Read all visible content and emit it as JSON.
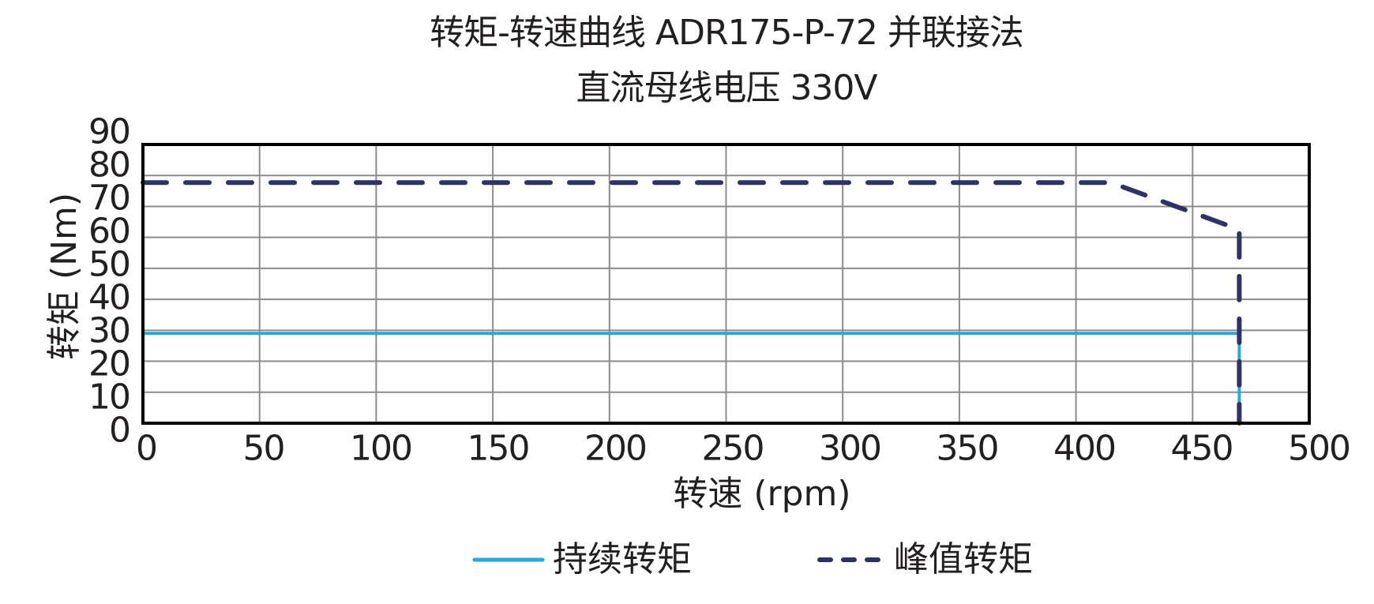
{
  "title": {
    "line1": "转矩-转速曲线 ADR175-P-72 并联接法",
    "line2": "直流母线电压 330V"
  },
  "axes": {
    "xlabel": "转速 (rpm)",
    "ylabel": "转矩 (Nm)"
  },
  "legend": {
    "continuous": "持续转矩",
    "peak": "峰值转矩"
  },
  "colors": {
    "continuous": "#29a8dc",
    "peak": "#2e3366",
    "grid": "#8c8c8c",
    "frame": "#000000"
  },
  "chart_data": {
    "type": "line",
    "title": "转矩-转速曲线 ADR175-P-72 并联接法 / 直流母线电压 330V",
    "xlabel": "转速 (rpm)",
    "ylabel": "转矩 (Nm)",
    "xlim": [
      0,
      500
    ],
    "ylim": [
      0,
      90
    ],
    "xticks": [
      0,
      50,
      100,
      150,
      200,
      250,
      300,
      350,
      400,
      450,
      500
    ],
    "yticks": [
      0,
      10,
      20,
      30,
      40,
      50,
      60,
      70,
      80,
      90
    ],
    "grid": true,
    "legend_position": "bottom",
    "series": [
      {
        "name": "持续转矩",
        "style": "solid",
        "color": "#29a8dc",
        "x": [
          0,
          470,
          470
        ],
        "y": [
          29,
          29,
          0
        ]
      },
      {
        "name": "峰值转矩",
        "style": "dashed",
        "color": "#2e3366",
        "x": [
          0,
          415,
          470,
          470
        ],
        "y": [
          77.7,
          77.7,
          62.5,
          0
        ]
      }
    ]
  }
}
